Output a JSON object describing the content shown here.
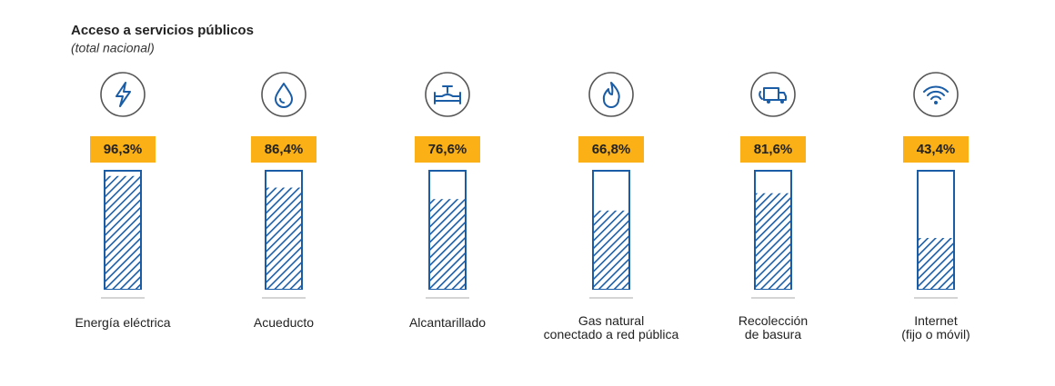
{
  "chart_data": {
    "type": "bar",
    "title": "Acceso a servicios públicos",
    "subtitle": "(total nacional)",
    "categories": [
      "Energía eléctrica",
      "Acueducto",
      "Alcantarillado",
      "Gas natural\nconectado a red pública",
      "Recolección\nde basura",
      "Internet\n(fijo o móvil)"
    ],
    "values": [
      96.3,
      86.4,
      76.6,
      66.8,
      81.6,
      43.4
    ],
    "value_labels": [
      "96,3%",
      "86,4%",
      "76,6%",
      "66,8%",
      "81,6%",
      "43,4%"
    ],
    "color": "#1a5da6",
    "label_color": "#fbb016",
    "ylim": [
      0,
      100
    ]
  }
}
